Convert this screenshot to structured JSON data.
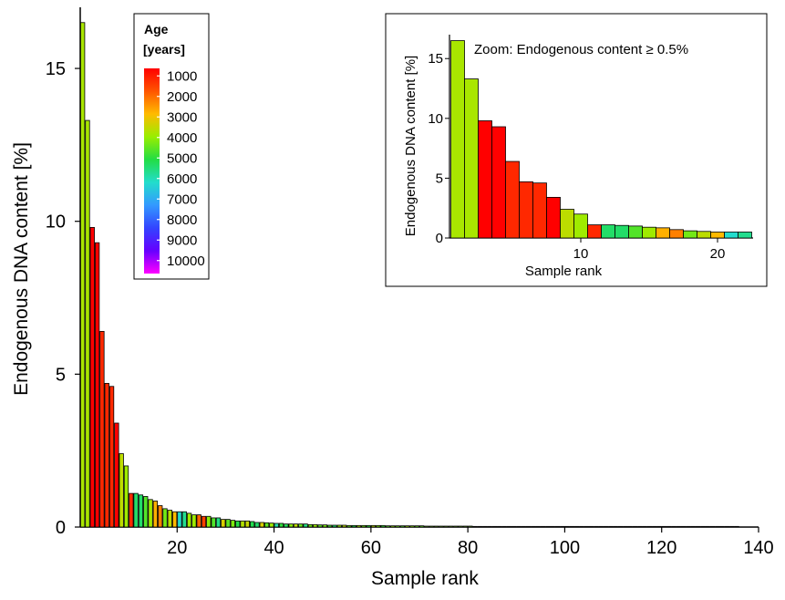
{
  "chart_data": [
    {
      "type": "bar",
      "xlabel": "Sample rank",
      "ylabel": "Endogenous DNA content [%]",
      "xlim": [
        0,
        140
      ],
      "ylim": [
        0,
        17
      ],
      "x_ticks": [
        20,
        40,
        60,
        80,
        100,
        120,
        140
      ],
      "y_ticks": [
        0,
        5,
        10,
        15
      ],
      "ranks": [
        1,
        2,
        3,
        4,
        5,
        6,
        7,
        8,
        9,
        10,
        11,
        12,
        13,
        14,
        15,
        16,
        17,
        18,
        19,
        20,
        21,
        22,
        23,
        24,
        25,
        26,
        27,
        28,
        29,
        30,
        31,
        32,
        33,
        34,
        35,
        36,
        37,
        38,
        39,
        40,
        41,
        42,
        43,
        44,
        45,
        46,
        47,
        48,
        49,
        50,
        51,
        52,
        53,
        54,
        55,
        56,
        57,
        58,
        59,
        60,
        61,
        62,
        63,
        64,
        65,
        66,
        67,
        68,
        69,
        70,
        71,
        72,
        73,
        74,
        75,
        76,
        77,
        78,
        79,
        80,
        81,
        82,
        83,
        84,
        85,
        86,
        87,
        88,
        89,
        90,
        91,
        92,
        93,
        94,
        95,
        96,
        97,
        98,
        99,
        100,
        101,
        102,
        103,
        104,
        105,
        106,
        107,
        108,
        109,
        110,
        111,
        112,
        113,
        114,
        115,
        116,
        117,
        118,
        119,
        120,
        121,
        122,
        123,
        124,
        125,
        126,
        127,
        128,
        129,
        130,
        131,
        132,
        133,
        134,
        135,
        136
      ],
      "values": [
        16.5,
        13.3,
        9.8,
        9.3,
        6.4,
        4.7,
        4.6,
        3.4,
        2.4,
        2.0,
        1.1,
        1.1,
        1.05,
        1.0,
        0.9,
        0.85,
        0.7,
        0.6,
        0.55,
        0.5,
        0.5,
        0.5,
        0.45,
        0.4,
        0.4,
        0.35,
        0.35,
        0.3,
        0.3,
        0.25,
        0.25,
        0.22,
        0.2,
        0.2,
        0.2,
        0.18,
        0.15,
        0.15,
        0.14,
        0.13,
        0.12,
        0.12,
        0.1,
        0.1,
        0.1,
        0.1,
        0.1,
        0.08,
        0.08,
        0.07,
        0.07,
        0.06,
        0.06,
        0.06,
        0.06,
        0.05,
        0.05,
        0.05,
        0.05,
        0.05,
        0.05,
        0.05,
        0.05,
        0.04,
        0.04,
        0.04,
        0.04,
        0.04,
        0.04,
        0.04,
        0.04,
        0.03,
        0.03,
        0.03,
        0.03,
        0.03,
        0.03,
        0.03,
        0.03,
        0.03,
        0.03,
        0.02,
        0.02,
        0.02,
        0.02,
        0.02,
        0.02,
        0.02,
        0.02,
        0.02,
        0.02,
        0.02,
        0.02,
        0.02,
        0.02,
        0.02,
        0.02,
        0.02,
        0.02,
        0.02,
        0.02,
        0.02,
        0.02,
        0.02,
        0.02,
        0.02,
        0.02,
        0.02,
        0.02,
        0.02,
        0.02,
        0.02,
        0.02,
        0.02,
        0.02,
        0.02,
        0.02,
        0.02,
        0.02,
        0.02,
        0.02,
        0.02,
        0.02,
        0.02,
        0.02,
        0.02,
        0.02,
        0.02,
        0.02,
        0.02,
        0.02,
        0.02,
        0.02,
        0.02,
        0.02,
        0.02,
        0.02
      ],
      "ages": [
        3500,
        3500,
        500,
        500,
        1000,
        1000,
        1000,
        500,
        3300,
        3600,
        1000,
        5000,
        5000,
        4300,
        3600,
        2500,
        2000,
        4000,
        3300,
        2600,
        5800,
        5300,
        3600,
        3600,
        1700,
        1300,
        3800,
        4300,
        5200,
        3000,
        4200,
        3900,
        4700,
        3400,
        3200,
        4800,
        5000,
        3000,
        4200,
        3600,
        5500,
        4600,
        4900,
        3800,
        3300,
        4100,
        5200,
        4000,
        3600,
        4200,
        3900,
        4400,
        5000,
        3700,
        3300,
        4100,
        4700,
        3500,
        4000,
        4600,
        3300,
        3900,
        4500,
        4200,
        3700,
        4000,
        4300,
        3600,
        3800,
        4100,
        4200,
        4000,
        4000,
        4000,
        4000,
        4000,
        4000,
        4000,
        4000,
        4000,
        4000,
        4000,
        4000,
        4000,
        4000,
        4000,
        4000,
        4000,
        4000,
        4000,
        4000,
        4000,
        4000,
        4000,
        4000,
        4000,
        4000,
        4000,
        4000,
        4000,
        4000,
        4000,
        4000,
        4000,
        4000,
        4000,
        4000,
        4000,
        4000,
        4000,
        4000,
        4000,
        4000,
        4000,
        4000,
        4000,
        4000,
        4000,
        4000,
        4000,
        4000,
        4000,
        4000,
        4000,
        4000,
        4000,
        4000,
        4000,
        4000,
        4000,
        4000,
        4000,
        4000,
        4000,
        4000,
        4000
      ]
    },
    {
      "type": "bar",
      "annotation": "Zoom: Endogenous content ≥ 0.5%",
      "xlabel": "Sample rank",
      "ylabel": "Endogenous DNA content [%]",
      "ylim": [
        0,
        17
      ],
      "x_ticks": [
        10,
        20
      ],
      "y_ticks": [
        0,
        5,
        10,
        15
      ],
      "ranks": [
        1,
        2,
        3,
        4,
        5,
        6,
        7,
        8,
        9,
        10,
        11,
        12,
        13,
        14,
        15,
        16,
        17,
        18,
        19,
        20,
        21,
        22
      ],
      "values": [
        16.5,
        13.3,
        9.8,
        9.3,
        6.4,
        4.7,
        4.6,
        3.4,
        2.4,
        2.0,
        1.1,
        1.1,
        1.05,
        1.0,
        0.9,
        0.85,
        0.7,
        0.6,
        0.55,
        0.5,
        0.5,
        0.5
      ],
      "ages": [
        3500,
        3500,
        500,
        500,
        1000,
        1000,
        1000,
        500,
        3300,
        3600,
        1000,
        5000,
        5000,
        4300,
        3600,
        2500,
        2000,
        4000,
        3300,
        2600,
        5800,
        5300
      ]
    }
  ],
  "legend": {
    "title_line1": "Age",
    "title_line2": "[years]",
    "labels": [
      "1000",
      "2000",
      "3000",
      "4000",
      "5000",
      "6000",
      "7000",
      "8000",
      "9000",
      "10000"
    ],
    "gradient_stops": [
      "#ff0000",
      "#ff5500",
      "#ffbb00",
      "#99ee00",
      "#22dd44",
      "#22ddcc",
      "#3399ff",
      "#3344ff",
      "#6600ff",
      "#ff00ff"
    ]
  }
}
